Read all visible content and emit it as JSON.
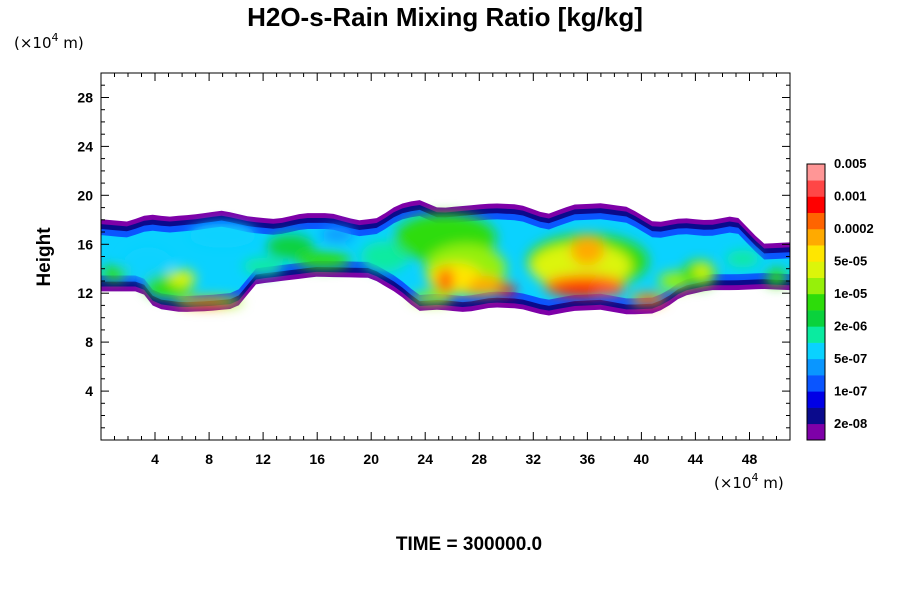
{
  "chart_data": {
    "type": "heatmap",
    "title": "H2O-s-Rain Mixing Ratio [kg/kg]",
    "ylabel": "Height",
    "x_unit": [
      "(×10",
      "4",
      " m)"
    ],
    "y_unit": [
      "(×10",
      "4",
      " m)"
    ],
    "xlim": [
      0,
      51
    ],
    "ylim": [
      0,
      30
    ],
    "x_ticks": [
      4,
      8,
      12,
      16,
      20,
      24,
      28,
      32,
      36,
      40,
      44,
      48
    ],
    "x_tick_labels": [
      "4",
      "8",
      "12",
      "16",
      "20",
      "24",
      "28",
      "32",
      "36",
      "40",
      "44",
      "48"
    ],
    "y_ticks": [
      4,
      8,
      12,
      16,
      20,
      24,
      28
    ],
    "y_tick_labels": [
      "4",
      "8",
      "12",
      "16",
      "20",
      "24",
      "28"
    ],
    "grid": false,
    "footer": "TIME = 300000.0",
    "colorbar": {
      "placement": "right",
      "colors": [
        "#7e00a8",
        "#0a0a8c",
        "#0000e6",
        "#0a55ff",
        "#0a96ff",
        "#0ad2ff",
        "#0aeba0",
        "#0ad23c",
        "#2ddc0a",
        "#96f00a",
        "#dcf50a",
        "#ffe600",
        "#ffaa00",
        "#ff6400",
        "#ff0000",
        "#ff4646",
        "#ff9696"
      ],
      "labels": [
        "2e-08",
        "1e-07",
        "5e-07",
        "2e-06",
        "1e-05",
        "5e-05",
        "0.0002",
        "0.001",
        "0.005"
      ]
    },
    "upper_boundary": [
      [
        0,
        17.8
      ],
      [
        2,
        17.6
      ],
      [
        3.5,
        18.2
      ],
      [
        5,
        18.0
      ],
      [
        7,
        18.2
      ],
      [
        9,
        18.5
      ],
      [
        11,
        18.0
      ],
      [
        13,
        17.8
      ],
      [
        15,
        18.3
      ],
      [
        17,
        18.3
      ],
      [
        19,
        17.7
      ],
      [
        20.5,
        17.9
      ],
      [
        22,
        19.0
      ],
      [
        23.5,
        19.4
      ],
      [
        25,
        18.7
      ],
      [
        27,
        18.9
      ],
      [
        29,
        19.1
      ],
      [
        31,
        19.0
      ],
      [
        33,
        18.2
      ],
      [
        35,
        19.0
      ],
      [
        37,
        19.1
      ],
      [
        39,
        18.8
      ],
      [
        41,
        17.5
      ],
      [
        43,
        17.9
      ],
      [
        45,
        17.7
      ],
      [
        47,
        18.1
      ],
      [
        49,
        15.8
      ],
      [
        51,
        15.9
      ]
    ],
    "lower_boundary": [
      [
        0,
        12.4
      ],
      [
        3,
        12.4
      ],
      [
        4,
        11.0
      ],
      [
        6,
        10.7
      ],
      [
        8,
        10.8
      ],
      [
        10,
        11.0
      ],
      [
        11.5,
        13.0
      ],
      [
        16,
        13.6
      ],
      [
        20,
        13.5
      ],
      [
        22,
        12.2
      ],
      [
        23.5,
        10.8
      ],
      [
        25,
        10.9
      ],
      [
        27,
        10.7
      ],
      [
        29,
        11.1
      ],
      [
        31,
        11.0
      ],
      [
        33,
        10.4
      ],
      [
        35,
        10.8
      ],
      [
        37,
        10.9
      ],
      [
        39,
        10.5
      ],
      [
        41,
        10.6
      ],
      [
        42,
        11.2
      ],
      [
        43,
        12.0
      ],
      [
        45,
        12.5
      ],
      [
        47,
        12.5
      ],
      [
        49,
        12.6
      ],
      [
        51,
        12.5
      ]
    ],
    "cells": [
      {
        "x": 1.0,
        "y": 13.6,
        "w": 2.0,
        "h": 1.2,
        "level": 8
      },
      {
        "x": 3.5,
        "y": 14.5,
        "w": 3.5,
        "h": 2.5,
        "level": 5
      },
      {
        "x": 5.0,
        "y": 12.6,
        "w": 3.5,
        "h": 2.0,
        "level": 8
      },
      {
        "x": 6.0,
        "y": 13.2,
        "w": 2.0,
        "h": 1.4,
        "level": 10
      },
      {
        "x": 8.0,
        "y": 11.3,
        "w": 5.0,
        "h": 0.9,
        "level": 9
      },
      {
        "x": 7.7,
        "y": 11.2,
        "w": 3.5,
        "h": 0.6,
        "level": 12
      },
      {
        "x": 8.0,
        "y": 11.2,
        "w": 2.2,
        "h": 0.3,
        "level": 14
      },
      {
        "x": 9.0,
        "y": 16.7,
        "w": 5.0,
        "h": 2.0,
        "level": 5
      },
      {
        "x": 14.0,
        "y": 15.8,
        "w": 3.5,
        "h": 2.0,
        "level": 7
      },
      {
        "x": 17.5,
        "y": 16.8,
        "w": 2.5,
        "h": 1.2,
        "level": 4
      },
      {
        "x": 21.0,
        "y": 15.0,
        "w": 3.5,
        "h": 2.5,
        "level": 6
      },
      {
        "x": 25.5,
        "y": 16.5,
        "w": 7.5,
        "h": 4.0,
        "level": 8
      },
      {
        "x": 27.0,
        "y": 14.0,
        "w": 6.0,
        "h": 4.0,
        "level": 9
      },
      {
        "x": 26.2,
        "y": 13.2,
        "w": 4.0,
        "h": 2.5,
        "level": 11
      },
      {
        "x": 25.5,
        "y": 13.0,
        "w": 1.2,
        "h": 2.2,
        "level": 13
      },
      {
        "x": 28.5,
        "y": 12.6,
        "w": 2.5,
        "h": 1.6,
        "level": 12
      },
      {
        "x": 30.0,
        "y": 12.3,
        "w": 1.4,
        "h": 1.0,
        "level": 14
      },
      {
        "x": 27.5,
        "y": 12.1,
        "w": 1.2,
        "h": 0.6,
        "level": 12
      },
      {
        "x": 24.5,
        "y": 11.6,
        "w": 3.0,
        "h": 1.0,
        "level": 9
      },
      {
        "x": 36.0,
        "y": 14.6,
        "w": 9.0,
        "h": 4.5,
        "level": 8
      },
      {
        "x": 35.5,
        "y": 14.2,
        "w": 7.5,
        "h": 3.8,
        "level": 10
      },
      {
        "x": 36.0,
        "y": 15.5,
        "w": 2.5,
        "h": 2.4,
        "level": 12
      },
      {
        "x": 35.8,
        "y": 12.6,
        "w": 6.0,
        "h": 1.8,
        "level": 13
      },
      {
        "x": 35.5,
        "y": 12.2,
        "w": 4.0,
        "h": 0.9,
        "level": 14
      },
      {
        "x": 37.5,
        "y": 12.1,
        "w": 2.0,
        "h": 0.6,
        "level": 15
      },
      {
        "x": 40.5,
        "y": 11.5,
        "w": 2.6,
        "h": 1.0,
        "level": 12
      },
      {
        "x": 40.5,
        "y": 11.4,
        "w": 1.2,
        "h": 0.6,
        "level": 14
      },
      {
        "x": 42.5,
        "y": 13.0,
        "w": 2.5,
        "h": 1.5,
        "level": 9
      },
      {
        "x": 44.3,
        "y": 13.6,
        "w": 2.5,
        "h": 2.2,
        "level": 8
      },
      {
        "x": 44.5,
        "y": 13.8,
        "w": 1.4,
        "h": 1.2,
        "level": 10
      },
      {
        "x": 47.5,
        "y": 14.8,
        "w": 2.5,
        "h": 1.4,
        "level": 6
      },
      {
        "x": 50.0,
        "y": 13.3,
        "w": 1.6,
        "h": 1.4,
        "level": 8
      },
      {
        "x": 16.5,
        "y": 14.7,
        "w": 4.0,
        "h": 1.4,
        "level": 8
      },
      {
        "x": 12.0,
        "y": 14.2,
        "w": 3.0,
        "h": 1.4,
        "level": 6
      }
    ]
  }
}
